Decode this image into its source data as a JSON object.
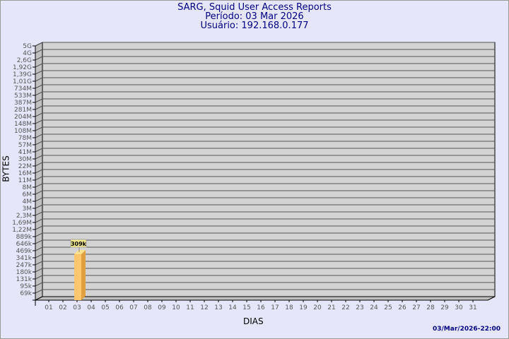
{
  "header": {
    "title": "SARG, Squid User Access Reports",
    "period": "Período: 03 Mar 2026",
    "user": "Usuário: 192.168.0.177"
  },
  "footer": {
    "timestamp": "03/Mar/2026-22:00"
  },
  "chart_data": {
    "type": "bar",
    "xlabel": "DIAS",
    "ylabel": "BYTES",
    "y_ticks": [
      "5G",
      "4G",
      "2,6G",
      "1,92G",
      "1,39G",
      "1,01G",
      "734M",
      "533M",
      "387M",
      "281M",
      "204M",
      "148M",
      "108M",
      "78M",
      "57M",
      "41M",
      "30M",
      "22M",
      "16M",
      "11M",
      "8M",
      "6M",
      "4M",
      "3M",
      "2,3M",
      "1,69M",
      "1,22M",
      "889k",
      "646k",
      "469k",
      "341k",
      "247k",
      "180k",
      "131k",
      "95k",
      "69k"
    ],
    "categories": [
      "01",
      "02",
      "03",
      "04",
      "05",
      "06",
      "07",
      "08",
      "09",
      "10",
      "11",
      "12",
      "13",
      "14",
      "15",
      "16",
      "17",
      "18",
      "19",
      "20",
      "21",
      "22",
      "23",
      "24",
      "25",
      "26",
      "27",
      "28",
      "29",
      "30",
      "31"
    ],
    "bars": [
      {
        "x": "03",
        "value_label": "309k",
        "value": 309000
      }
    ],
    "grid": true,
    "colors": {
      "bar": "#ffc66e",
      "bar_side": "#e0a040",
      "wall": "#d3d3d3",
      "side_wall": "#c0c0c0",
      "label_box": "#f0e68c",
      "text": "#000080"
    }
  }
}
